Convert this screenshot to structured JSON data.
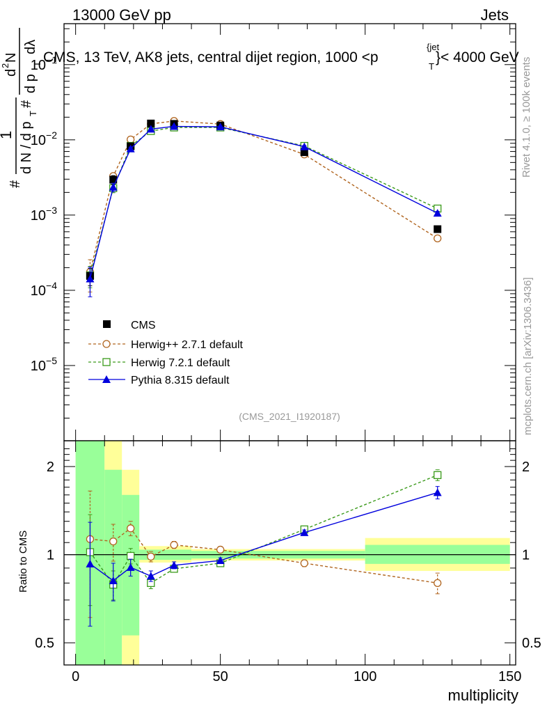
{
  "header": {
    "left_label": "13000 GeV pp",
    "right_label": "Jets",
    "plot_title": "CMS, 13 TeV, AK8 jets, central dijet region, 1000 <p",
    "plot_title_sup": "{jet",
    "plot_title_sub": "T",
    "plot_title_end": "}< 4000 GeV"
  },
  "side_labels": {
    "rivet": "Rivet 4.1.0, ≥ 100k events",
    "mcplots": "mcplots.cern.ch [arXiv:1306.3436]"
  },
  "analysis_id": "(CMS_2021_I1920187)",
  "y_axis_main": {
    "parts": [
      "#",
      "1",
      "d N / d p",
      "T",
      "#",
      "d",
      "2",
      "N",
      "d p",
      "T",
      "dλ"
    ]
  },
  "ratio_axis_label": "Ratio to CMS",
  "x_axis_label": "multiplicity",
  "colors": {
    "cms": "#000000",
    "herwigpp": "#b0641e",
    "herwig7": "#3a9a1a",
    "pythia": "#0000dd",
    "band_inner": "#99ff99",
    "band_outer": "#ffff99"
  },
  "chart_data": [
    {
      "type": "line",
      "title": "CMS, 13 TeV, AK8 jets, central dijet region, 1000 < pT{jet} < 4000 GeV",
      "yscale": "log",
      "xlim": [
        -4,
        152
      ],
      "ylim": [
        1e-06,
        0.35
      ],
      "x_ticks": [
        0,
        50,
        100,
        150
      ],
      "y_tick_labels": [
        {
          "base": "10",
          "exp": "−1",
          "value": 0.1
        },
        {
          "base": "10",
          "exp": "−2",
          "value": 0.01
        },
        {
          "base": "10",
          "exp": "−3",
          "value": 0.001
        },
        {
          "base": "10",
          "exp": "−4",
          "value": 0.0001
        },
        {
          "base": "10",
          "exp": "−5",
          "value": 1e-05
        }
      ],
      "legend_position": "lower-left",
      "series": [
        {
          "name": "CMS",
          "style": "square-filled",
          "dashed": false,
          "draw_line": false,
          "x": [
            5,
            13,
            19,
            26,
            34,
            50,
            79,
            125
          ],
          "y": [
            0.000155,
            0.00295,
            0.0082,
            0.0165,
            0.0163,
            0.0155,
            0.00685,
            0.00065
          ],
          "err": [
            4e-05,
            0.0004,
            0.0007,
            0.0011,
            0.0009,
            0.0008,
            0.0004,
            4e-05
          ]
        },
        {
          "name": "Herwig++ 2.7.1 default",
          "style": "circle-open",
          "dashed": true,
          "draw_line": true,
          "x": [
            5,
            13,
            19,
            26,
            34,
            50,
            79,
            125
          ],
          "y": [
            0.000175,
            0.0033,
            0.0101,
            0.0163,
            0.0178,
            0.0162,
            0.0064,
            0.00049
          ],
          "err": [
            8e-05,
            0.0003,
            0.0004,
            0.0005,
            0.0005,
            0.0004,
            0.0002,
            3e-05
          ]
        },
        {
          "name": "Herwig 7.2.1 default",
          "style": "square-open",
          "dashed": true,
          "draw_line": true,
          "x": [
            5,
            13,
            19,
            26,
            34,
            50,
            79,
            125
          ],
          "y": [
            0.000158,
            0.00228,
            0.0083,
            0.0131,
            0.0146,
            0.0146,
            0.0083,
            0.00122
          ],
          "err": [
            5e-05,
            0.0003,
            0.0004,
            0.0004,
            0.0004,
            0.0004,
            0.0003,
            5e-05
          ]
        },
        {
          "name": "Pythia 8.315 default",
          "style": "triangle-filled",
          "dashed": false,
          "draw_line": true,
          "x": [
            5,
            13,
            19,
            26,
            34,
            50,
            79,
            125
          ],
          "y": [
            0.000142,
            0.00235,
            0.0076,
            0.0139,
            0.0151,
            0.0149,
            0.0081,
            0.00106
          ],
          "err": [
            6e-05,
            0.0003,
            0.0004,
            0.0004,
            0.0004,
            0.0004,
            0.0003,
            6e-05
          ]
        }
      ]
    },
    {
      "type": "line",
      "title": "",
      "ylabel": "Ratio to CMS",
      "xlabel": "multiplicity",
      "yscale": "log",
      "xlim": [
        -4,
        152
      ],
      "ylim": [
        0.42,
        2.45
      ],
      "x_ticks": [
        0,
        50,
        100,
        150
      ],
      "y_ticks": [
        0.5,
        1,
        2
      ],
      "y_tick_labels": [
        "0.5",
        "1",
        "2"
      ],
      "reference": 1,
      "bands": [
        {
          "x0": 0,
          "x1": 10,
          "inner": [
            0.42,
            2.45
          ],
          "outer": [
            0.42,
            2.45
          ]
        },
        {
          "x0": 10,
          "x1": 16,
          "inner": [
            0.42,
            1.95
          ],
          "outer": [
            0.42,
            2.45
          ]
        },
        {
          "x0": 16,
          "x1": 22,
          "inner": [
            0.53,
            1.6
          ],
          "outer": [
            0.42,
            1.95
          ]
        },
        {
          "x0": 22,
          "x1": 40,
          "inner": [
            0.96,
            1.04
          ],
          "outer": [
            0.94,
            1.07
          ]
        },
        {
          "x0": 40,
          "x1": 100,
          "inner": [
            0.97,
            1.03
          ],
          "outer": [
            0.955,
            1.045
          ]
        },
        {
          "x0": 100,
          "x1": 150,
          "inner": [
            0.93,
            1.08
          ],
          "outer": [
            0.88,
            1.14
          ]
        }
      ],
      "series": [
        {
          "name": "Herwig++ 2.7.1 default",
          "style": "circle-open",
          "dashed": true,
          "x": [
            5,
            13,
            19,
            26,
            34,
            50,
            79,
            125
          ],
          "y": [
            1.13,
            1.11,
            1.23,
            0.985,
            1.08,
            1.04,
            0.935,
            0.8
          ],
          "err": [
            0.52,
            0.16,
            0.07,
            0.04,
            0.03,
            0.02,
            0.025,
            0.065
          ]
        },
        {
          "name": "Herwig 7.2.1 default",
          "style": "square-open",
          "dashed": true,
          "x": [
            5,
            13,
            19,
            26,
            34,
            50,
            79,
            125
          ],
          "y": [
            1.02,
            0.79,
            0.99,
            0.8,
            0.895,
            0.935,
            1.22,
            1.87
          ],
          "err": [
            0.35,
            0.09,
            0.06,
            0.035,
            0.02,
            0.02,
            0.025,
            0.08
          ]
        },
        {
          "name": "Pythia 8.315 default",
          "style": "triangle-filled",
          "dashed": false,
          "x": [
            5,
            13,
            19,
            26,
            34,
            50,
            79,
            125
          ],
          "y": [
            0.93,
            0.815,
            0.905,
            0.845,
            0.92,
            0.955,
            1.19,
            1.63
          ],
          "err": [
            0.36,
            0.12,
            0.06,
            0.035,
            0.025,
            0.02,
            0.025,
            0.08
          ]
        }
      ]
    }
  ]
}
